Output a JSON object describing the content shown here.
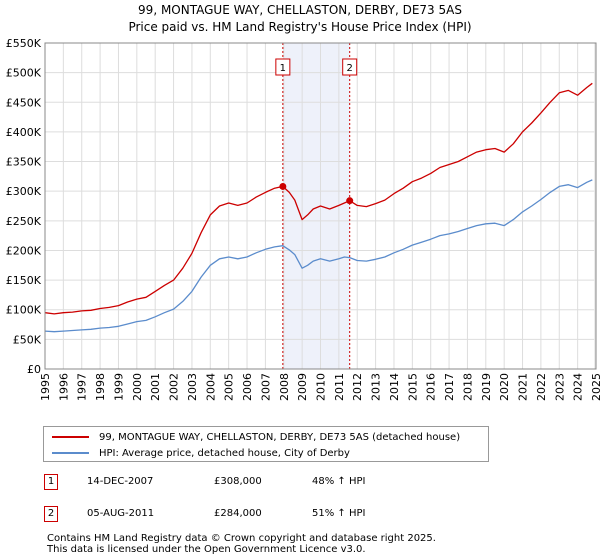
{
  "title_line1": "99, MONTAGUE WAY, CHELLASTON, DERBY, DE73 5AS",
  "title_line2": "Price paid vs. HM Land Registry's House Price Index (HPI)",
  "colors": {
    "property": "#cc0000",
    "hpi": "#5b8ccc",
    "grid": "#dddddd",
    "marker_line": "#cc0000",
    "shade": "#eef1fa"
  },
  "chart_data": {
    "type": "line",
    "ylim": [
      0,
      550000
    ],
    "y_ticks": [
      0,
      50000,
      100000,
      150000,
      200000,
      250000,
      300000,
      350000,
      400000,
      450000,
      500000,
      550000
    ],
    "y_tick_labels": [
      "£0",
      "£50K",
      "£100K",
      "£150K",
      "£200K",
      "£250K",
      "£300K",
      "£350K",
      "£400K",
      "£450K",
      "£500K",
      "£550K"
    ],
    "xlim": [
      1995,
      2025
    ],
    "x_ticks": [
      "1995",
      "1996",
      "1997",
      "1998",
      "1999",
      "2000",
      "2001",
      "2002",
      "2003",
      "2004",
      "2005",
      "2006",
      "2007",
      "2008",
      "2009",
      "2010",
      "2011",
      "2012",
      "2013",
      "2014",
      "2015",
      "2016",
      "2017",
      "2018",
      "2019",
      "2020",
      "2021",
      "2022",
      "2023",
      "2024",
      "2025"
    ],
    "series": [
      {
        "name": "99, MONTAGUE WAY, CHELLASTON, DERBY, DE73 5AS (detached house)",
        "color": "#cc0000",
        "x": [
          1995.0,
          1995.5,
          1996.0,
          1996.5,
          1997.0,
          1997.5,
          1998.0,
          1998.5,
          1999.0,
          1999.5,
          2000.0,
          2000.5,
          2001.0,
          2001.5,
          2002.0,
          2002.5,
          2003.0,
          2003.5,
          2004.0,
          2004.5,
          2005.0,
          2005.5,
          2006.0,
          2006.5,
          2007.0,
          2007.5,
          2007.95,
          2008.3,
          2008.6,
          2009.0,
          2009.3,
          2009.6,
          2010.0,
          2010.5,
          2011.0,
          2011.3,
          2011.59,
          2012.0,
          2012.5,
          2013.0,
          2013.5,
          2014.0,
          2014.5,
          2015.0,
          2015.5,
          2016.0,
          2016.5,
          2017.0,
          2017.5,
          2018.0,
          2018.5,
          2019.0,
          2019.5,
          2020.0,
          2020.5,
          2021.0,
          2021.5,
          2022.0,
          2022.5,
          2023.0,
          2023.5,
          2024.0,
          2024.5,
          2024.8
        ],
        "values": [
          95000,
          93000,
          95000,
          96000,
          98000,
          99000,
          102000,
          104000,
          107000,
          113000,
          118000,
          121000,
          131000,
          141000,
          150000,
          170000,
          195000,
          230000,
          260000,
          275000,
          280000,
          276000,
          280000,
          290000,
          298000,
          305000,
          308000,
          298000,
          285000,
          252000,
          260000,
          270000,
          275000,
          270000,
          276000,
          280000,
          284000,
          276000,
          274000,
          279000,
          285000,
          296000,
          305000,
          316000,
          322000,
          330000,
          340000,
          345000,
          350000,
          358000,
          366000,
          370000,
          372000,
          366000,
          380000,
          400000,
          415000,
          432000,
          450000,
          466000,
          470000,
          462000,
          475000,
          482000
        ]
      },
      {
        "name": "HPI: Average price, detached house, City of Derby",
        "color": "#5b8ccc",
        "x": [
          1995.0,
          1995.5,
          1996.0,
          1996.5,
          1997.0,
          1997.5,
          1998.0,
          1998.5,
          1999.0,
          1999.5,
          2000.0,
          2000.5,
          2001.0,
          2001.5,
          2002.0,
          2002.5,
          2003.0,
          2003.5,
          2004.0,
          2004.5,
          2005.0,
          2005.5,
          2006.0,
          2006.5,
          2007.0,
          2007.5,
          2007.95,
          2008.3,
          2008.6,
          2009.0,
          2009.3,
          2009.6,
          2010.0,
          2010.5,
          2011.0,
          2011.3,
          2011.59,
          2012.0,
          2012.5,
          2013.0,
          2013.5,
          2014.0,
          2014.5,
          2015.0,
          2015.5,
          2016.0,
          2016.5,
          2017.0,
          2017.5,
          2018.0,
          2018.5,
          2019.0,
          2019.5,
          2020.0,
          2020.5,
          2021.0,
          2021.5,
          2022.0,
          2022.5,
          2023.0,
          2023.5,
          2024.0,
          2024.5,
          2024.8
        ],
        "values": [
          64000,
          63000,
          64000,
          65000,
          66000,
          67000,
          69000,
          70000,
          72000,
          76000,
          80000,
          82000,
          88000,
          95000,
          101000,
          114000,
          131000,
          155000,
          175000,
          186000,
          189000,
          186000,
          189000,
          196000,
          202000,
          206000,
          208000,
          201000,
          193000,
          170000,
          175000,
          182000,
          186000,
          182000,
          186000,
          189000,
          188000,
          183000,
          182000,
          185000,
          189000,
          196000,
          202000,
          209000,
          214000,
          219000,
          225000,
          228000,
          232000,
          237000,
          242000,
          245000,
          246000,
          242000,
          252000,
          265000,
          275000,
          286000,
          298000,
          308000,
          311000,
          306000,
          315000,
          319000
        ]
      }
    ],
    "transactions": [
      {
        "label": "1",
        "x": 2007.95,
        "value": 308000,
        "date": "14-DEC-2007",
        "price": "£308,000",
        "hpi": "48% ↑ HPI"
      },
      {
        "label": "2",
        "x": 2011.59,
        "value": 284000,
        "date": "05-AUG-2011",
        "price": "£284,000",
        "hpi": "51% ↑ HPI"
      }
    ]
  },
  "legend": {
    "property_label": "99, MONTAGUE WAY, CHELLASTON, DERBY, DE73 5AS (detached house)",
    "hpi_label": "HPI: Average price, detached house, City of Derby"
  },
  "footer_line1": "Contains HM Land Registry data © Crown copyright and database right 2025.",
  "footer_line2": "This data is licensed under the Open Government Licence v3.0."
}
